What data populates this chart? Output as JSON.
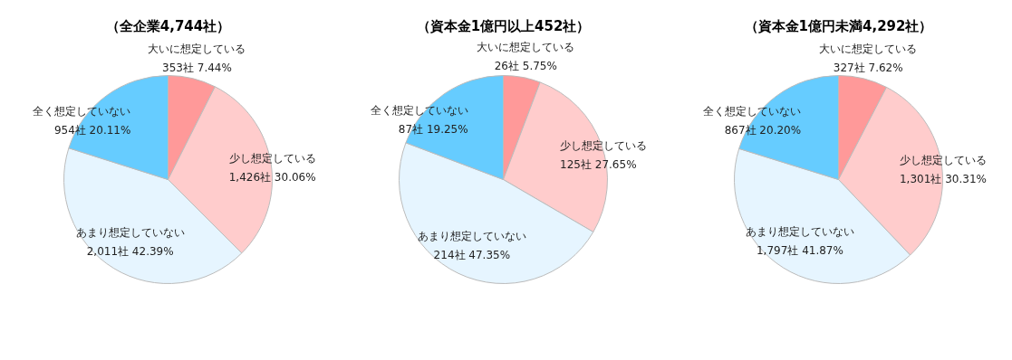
{
  "chart_data": [
    {
      "type": "pie",
      "title": "（全企業4,744社）",
      "categories": [
        "大いに想定している",
        "少し想定している",
        "あまり想定していない",
        "全く想定していない"
      ],
      "values": [
        353,
        1426,
        2011,
        954
      ],
      "colors": [
        "#ff9999",
        "#ffcccc",
        "#e6f5ff",
        "#66ccff"
      ],
      "value_labels": [
        "353社 7.44%",
        "1,426社 30.06%",
        "2,011社 42.39%",
        "954社 20.11%"
      ]
    },
    {
      "type": "pie",
      "title": "（資本金1億円以上452社）",
      "categories": [
        "大いに想定している",
        "少し想定している",
        "あまり想定していない",
        "全く想定していない"
      ],
      "values": [
        26,
        125,
        214,
        87
      ],
      "colors": [
        "#ff9999",
        "#ffcccc",
        "#e6f5ff",
        "#66ccff"
      ],
      "value_labels": [
        "26社 5.75%",
        "125社 27.65%",
        "214社 47.35%",
        "87社 19.25%"
      ]
    },
    {
      "type": "pie",
      "title": "（資本金1億円未満4,292社）",
      "categories": [
        "大いに想定している",
        "少し想定している",
        "あまり想定していない",
        "全く想定していない"
      ],
      "values": [
        327,
        1301,
        1797,
        867
      ],
      "colors": [
        "#ff9999",
        "#ffcccc",
        "#e6f5ff",
        "#66ccff"
      ],
      "value_labels": [
        "327社 7.62%",
        "1,301社 30.31%",
        "1,797社 41.87%",
        "867社 20.20%"
      ]
    }
  ]
}
